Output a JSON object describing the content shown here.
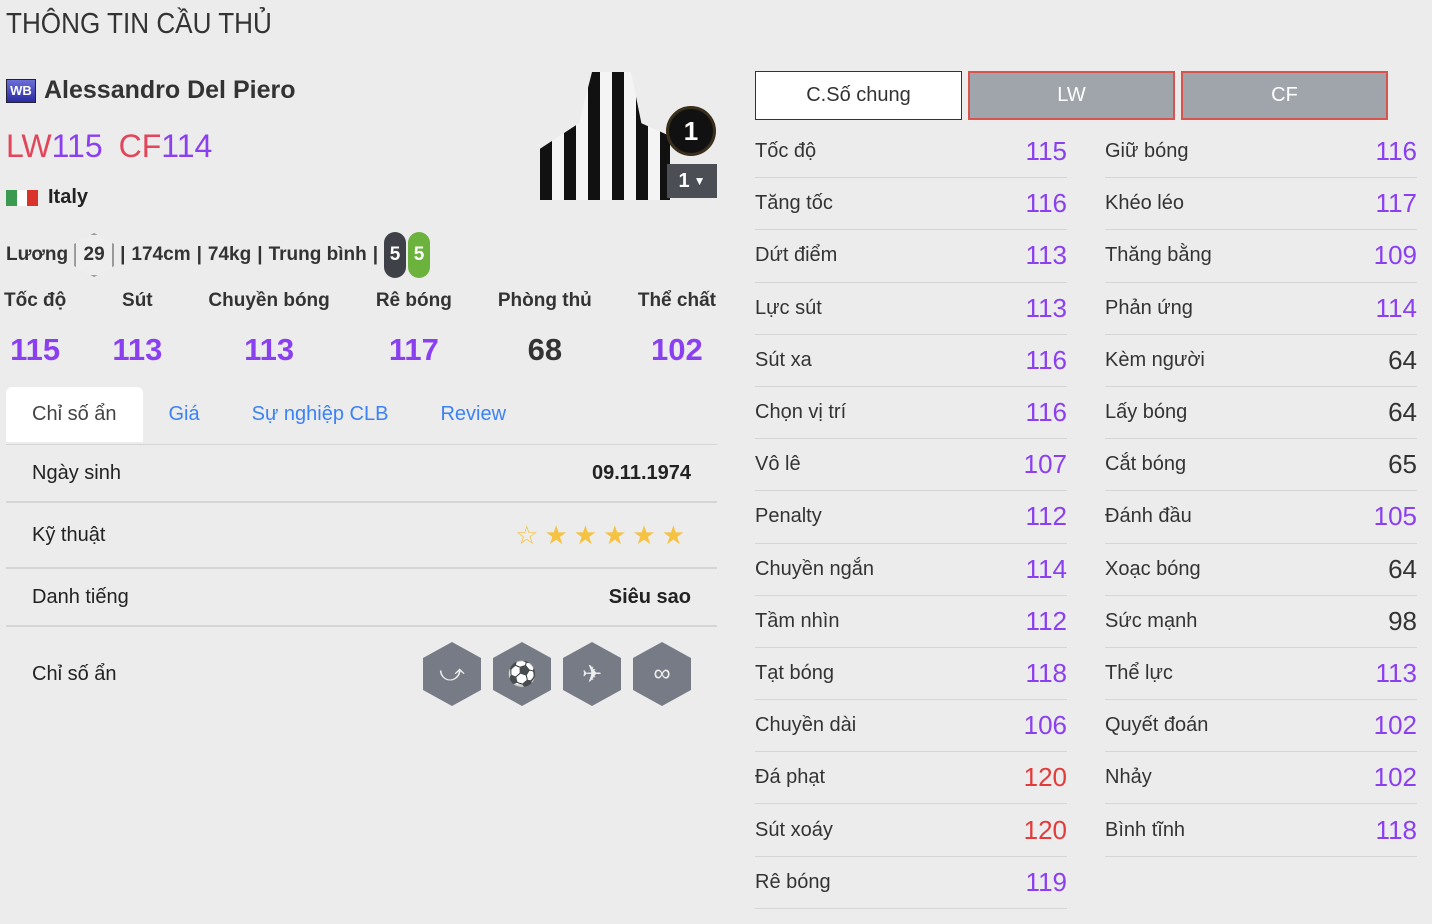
{
  "page_title": "THÔNG TIN CẦU THỦ",
  "player": {
    "season_badge": "WB",
    "name": "Alessandro Del Piero",
    "positions": [
      {
        "pos": "LW",
        "ovr": "115"
      },
      {
        "pos": "CF",
        "ovr": "114"
      }
    ],
    "nation": "Italy",
    "salary_label": "Lương",
    "salary": "29",
    "height": "174cm",
    "weight": "74kg",
    "work_rate": "Trung bình",
    "left_foot": "5",
    "right_foot": "5",
    "jersey_number": "1",
    "upgrade_level": "1"
  },
  "main_stats": [
    {
      "label": "Tốc độ",
      "value": "115"
    },
    {
      "label": "Sút",
      "value": "113"
    },
    {
      "label": "Chuyền bóng",
      "value": "113"
    },
    {
      "label": "Rê bóng",
      "value": "117"
    },
    {
      "label": "Phòng thủ",
      "value": "68"
    },
    {
      "label": "Thể chất",
      "value": "102"
    }
  ],
  "tabs": [
    "Chỉ số ẩn",
    "Giá",
    "Sự nghiệp CLB",
    "Review"
  ],
  "details": {
    "birth_label": "Ngày sinh",
    "birth": "09.11.1974",
    "skill_label": "Kỹ thuật",
    "skill_stars": 5,
    "skill_max": 6,
    "fame_label": "Danh tiếng",
    "fame": "Siêu sao",
    "traits_label": "Chỉ số ẩn",
    "traits": [
      "trait-curler-icon",
      "trait-long-shot-icon",
      "trait-finesse-icon",
      "trait-dribbler-icon"
    ]
  },
  "colors": {
    "accent": "#8a3ff0",
    "position": "#e3455a",
    "high": "#e33a3a",
    "star": "#f5c242"
  },
  "stat_tabs": [
    "C.Số chung",
    "LW",
    "CF"
  ],
  "stats_left": [
    [
      "Tốc độ",
      "115"
    ],
    [
      "Tăng tốc",
      "116"
    ],
    [
      "Dứt điểm",
      "113"
    ],
    [
      "Lực sút",
      "113"
    ],
    [
      "Sút xa",
      "116"
    ],
    [
      "Chọn vị trí",
      "116"
    ],
    [
      "Vô lê",
      "107"
    ],
    [
      "Penalty",
      "112"
    ],
    [
      "Chuyền ngắn",
      "114"
    ],
    [
      "Tầm nhìn",
      "112"
    ],
    [
      "Tạt bóng",
      "118"
    ],
    [
      "Chuyền dài",
      "106"
    ],
    [
      "Đá phạt",
      "120"
    ],
    [
      "Sút xoáy",
      "120"
    ],
    [
      "Rê bóng",
      "119"
    ]
  ],
  "stats_right": [
    [
      "Giữ bóng",
      "116"
    ],
    [
      "Khéo léo",
      "117"
    ],
    [
      "Thăng bằng",
      "109"
    ],
    [
      "Phản ứng",
      "114"
    ],
    [
      "Kèm người",
      "64"
    ],
    [
      "Lấy bóng",
      "64"
    ],
    [
      "Cắt bóng",
      "65"
    ],
    [
      "Đánh đầu",
      "105"
    ],
    [
      "Xoạc bóng",
      "64"
    ],
    [
      "Sức mạnh",
      "98"
    ],
    [
      "Thể lực",
      "113"
    ],
    [
      "Quyết đoán",
      "102"
    ],
    [
      "Nhảy",
      "102"
    ],
    [
      "Bình tĩnh",
      "118"
    ]
  ]
}
